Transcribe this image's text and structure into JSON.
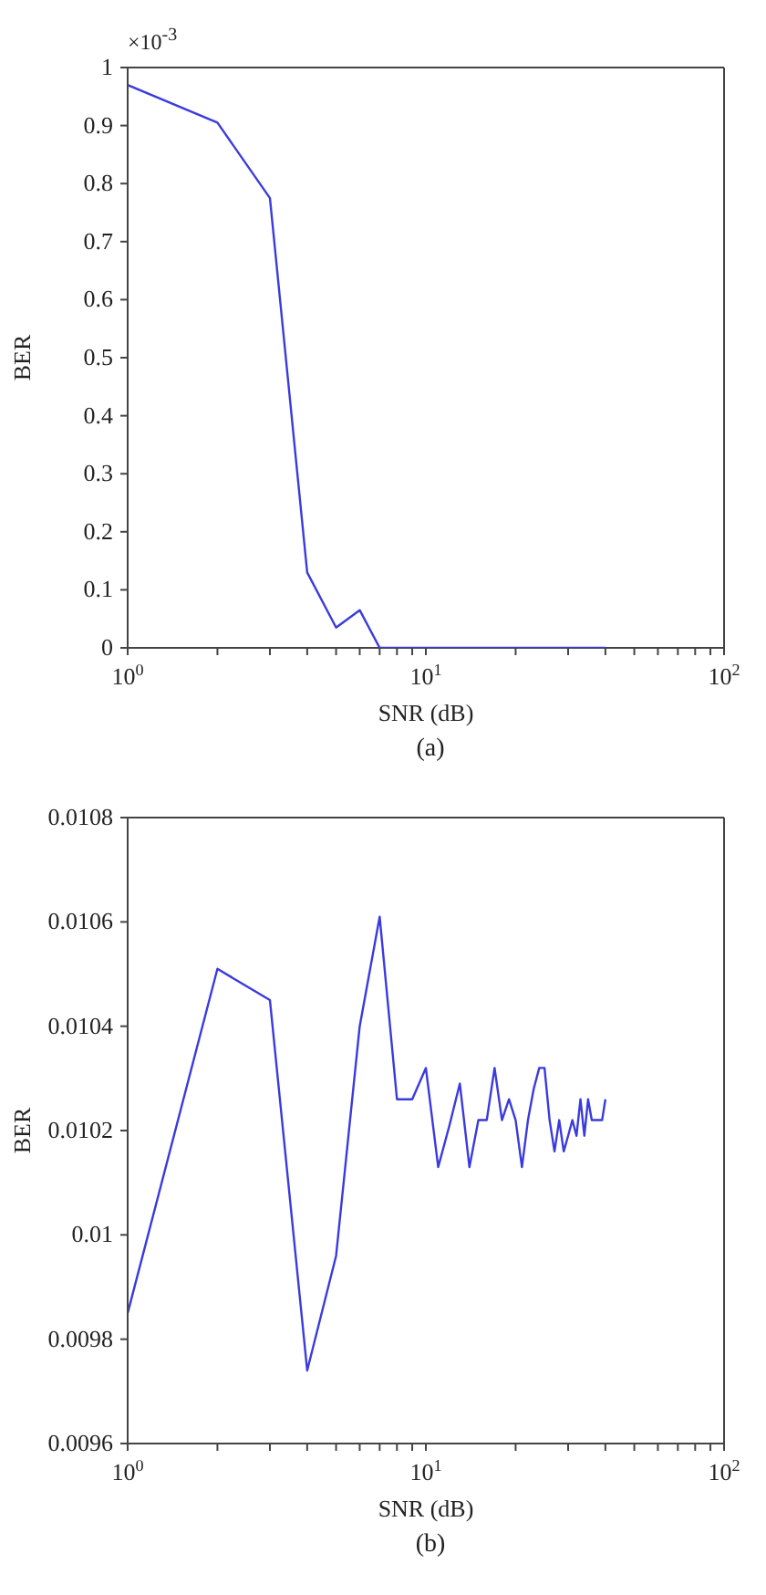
{
  "chart_data": [
    {
      "type": "line",
      "xlabel": "SNR (dB)",
      "ylabel": "BER",
      "annotations": [
        "×10$^{-3}$",
        "(a)"
      ],
      "log": "x",
      "grid": false,
      "legend": false,
      "marker": "none",
      "line_style": "solid",
      "xlim": [
        1,
        100
      ],
      "xticks": [
        {
          "value": 1,
          "label": "10$^{0}$"
        },
        {
          "value": 2,
          "label": null
        },
        {
          "value": 3,
          "label": null
        },
        {
          "value": 4,
          "label": null
        },
        {
          "value": 5,
          "label": null
        },
        {
          "value": 6,
          "label": null
        },
        {
          "value": 7,
          "label": null
        },
        {
          "value": 8,
          "label": null
        },
        {
          "value": 9,
          "label": null
        },
        {
          "value": 10,
          "label": "10$^{1}$"
        },
        {
          "value": 20,
          "label": null
        },
        {
          "value": 30,
          "label": null
        },
        {
          "value": 40,
          "label": null
        },
        {
          "value": 50,
          "label": null
        },
        {
          "value": 60,
          "label": null
        },
        {
          "value": 70,
          "label": null
        },
        {
          "value": 80,
          "label": null
        },
        {
          "value": 90,
          "label": null
        },
        {
          "value": 100,
          "label": "10$^{2}$"
        }
      ],
      "ylim": [
        0,
        1
      ],
      "yticks": [
        0,
        0.1,
        0.2,
        0.3,
        0.4,
        0.5,
        0.6,
        0.7,
        0.8,
        0.9,
        1
      ],
      "x": [
        1,
        2,
        3,
        4,
        5,
        6,
        7,
        8,
        9,
        10,
        11,
        12,
        13,
        14,
        15,
        16,
        17,
        18,
        19,
        20,
        21,
        22,
        23,
        24,
        25,
        26,
        27,
        28,
        29,
        30,
        31,
        32,
        33,
        34,
        35,
        36,
        37,
        38,
        39,
        40
      ],
      "series": [
        {
          "color": "#3a3ae0",
          "values": [
            0.97,
            0.905,
            0.775,
            0.13,
            0.035,
            0.065,
            0,
            0,
            0,
            0,
            0,
            0,
            0,
            0,
            0,
            0,
            0,
            0,
            0,
            0,
            0,
            0,
            0,
            0,
            0,
            0,
            0,
            0,
            0,
            0,
            0,
            0,
            0,
            0,
            0,
            0,
            0,
            0,
            0,
            0
          ]
        }
      ]
    },
    {
      "type": "line",
      "xlabel": "SNR (dB)",
      "ylabel": "BER",
      "annotations": [
        "(b)"
      ],
      "log": "x",
      "grid": false,
      "legend": false,
      "marker": "none",
      "line_style": "solid",
      "xlim": [
        1,
        100
      ],
      "xticks": [
        {
          "value": 1,
          "label": "10$^{0}$"
        },
        {
          "value": 2,
          "label": null
        },
        {
          "value": 3,
          "label": null
        },
        {
          "value": 4,
          "label": null
        },
        {
          "value": 5,
          "label": null
        },
        {
          "value": 6,
          "label": null
        },
        {
          "value": 7,
          "label": null
        },
        {
          "value": 8,
          "label": null
        },
        {
          "value": 9,
          "label": null
        },
        {
          "value": 10,
          "label": "10$^{1}$"
        },
        {
          "value": 20,
          "label": null
        },
        {
          "value": 30,
          "label": null
        },
        {
          "value": 40,
          "label": null
        },
        {
          "value": 50,
          "label": null
        },
        {
          "value": 60,
          "label": null
        },
        {
          "value": 70,
          "label": null
        },
        {
          "value": 80,
          "label": null
        },
        {
          "value": 90,
          "label": null
        },
        {
          "value": 100,
          "label": "10$^{2}$"
        }
      ],
      "ylim": [
        0.0096,
        0.0108
      ],
      "yticks": [
        0.0096,
        0.0098,
        0.01,
        0.0102,
        0.0104,
        0.0106,
        0.0108
      ],
      "x": [
        1,
        2,
        3,
        4,
        5,
        6,
        7,
        8,
        9,
        10,
        11,
        12,
        13,
        14,
        15,
        16,
        17,
        18,
        19,
        20,
        21,
        22,
        23,
        24,
        25,
        26,
        27,
        28,
        29,
        30,
        31,
        32,
        33,
        34,
        35,
        36,
        37,
        38,
        39,
        40
      ],
      "series": [
        {
          "color": "#3a3ae0",
          "values": [
            0.00985,
            0.01051,
            0.01045,
            0.00974,
            0.00996,
            0.0104,
            0.01061,
            0.01026,
            0.01026,
            0.01032,
            0.01013,
            0.01021,
            0.01029,
            0.01013,
            0.01022,
            0.01022,
            0.01032,
            0.01022,
            0.01026,
            0.01022,
            0.01013,
            0.01022,
            0.01028,
            0.01032,
            0.01032,
            0.01022,
            0.01016,
            0.01022,
            0.01016,
            0.01019,
            0.01022,
            0.01019,
            0.01026,
            0.01019,
            0.01026,
            0.01022,
            0.01022,
            0.01022,
            0.01022,
            0.01026
          ]
        }
      ]
    }
  ]
}
